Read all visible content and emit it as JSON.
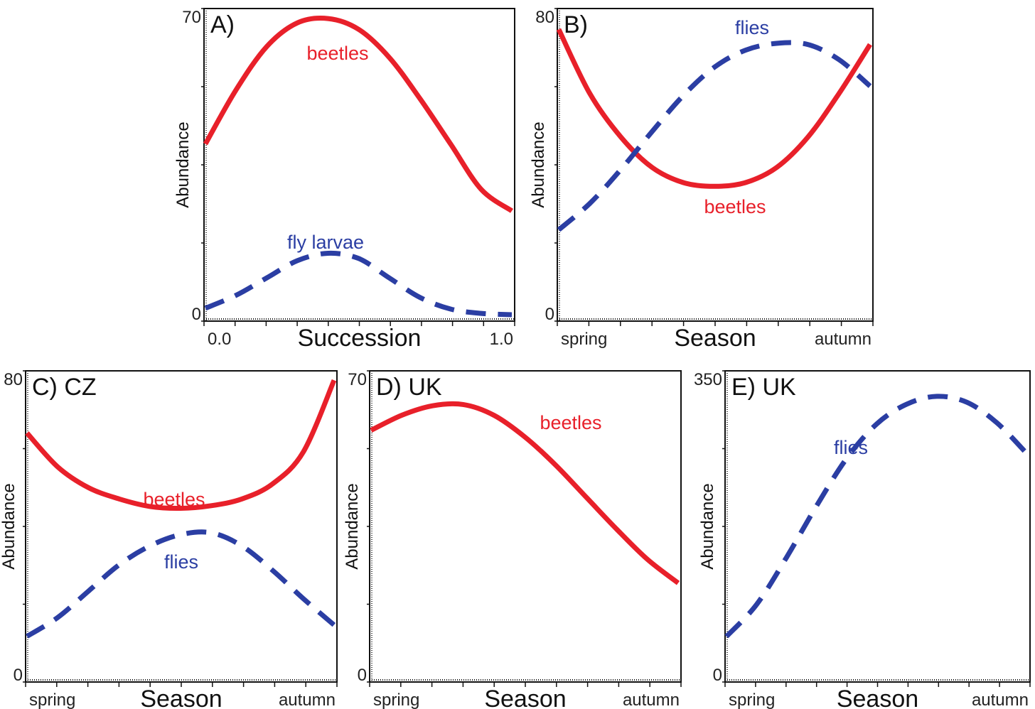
{
  "colors": {
    "beetles": "#e8202a",
    "flies": "#2b3ea3",
    "axis": "#111111"
  },
  "chart_data": [
    {
      "type": "line",
      "panel": "A)",
      "xlabel": "Succession",
      "ylabel": "Abundance",
      "x_ticks": [
        "0.0",
        "1.0"
      ],
      "y_ticks": [
        "0",
        "70"
      ],
      "xlim": [
        0,
        1
      ],
      "ylim": [
        0,
        70
      ],
      "grid": false,
      "series": [
        {
          "name": "beetles",
          "style": "solid",
          "color": "#e8202a",
          "x": [
            0,
            0.1,
            0.2,
            0.3,
            0.4,
            0.5,
            0.6,
            0.7,
            0.8,
            0.9,
            1.0
          ],
          "y": [
            40,
            52.5,
            62.5,
            68,
            69,
            66.5,
            60,
            50.5,
            40,
            29.5,
            24.5
          ]
        },
        {
          "name": "fly larvae",
          "style": "dashed",
          "color": "#2b3ea3",
          "x": [
            0,
            0.1,
            0.2,
            0.3,
            0.4,
            0.5,
            0.6,
            0.7,
            0.8,
            0.9,
            1.0
          ],
          "y": [
            2,
            5,
            9,
            13,
            14.7,
            13.5,
            9,
            4.5,
            1.8,
            0.8,
            0.5
          ]
        }
      ]
    },
    {
      "type": "line",
      "panel": "B)",
      "xlabel": "Season",
      "ylabel": "Abundance",
      "x_ticks": [
        "spring",
        "autumn"
      ],
      "y_ticks": [
        "0",
        "80"
      ],
      "xlim": [
        0,
        1
      ],
      "ylim": [
        0,
        80
      ],
      "grid": false,
      "series": [
        {
          "name": "beetles",
          "style": "solid",
          "color": "#e8202a",
          "x": [
            0,
            0.1,
            0.2,
            0.3,
            0.4,
            0.5,
            0.6,
            0.7,
            0.8,
            0.9,
            1.0
          ],
          "y": [
            76,
            59,
            47.5,
            39.5,
            35.5,
            34.5,
            35.5,
            39.5,
            47.5,
            59,
            72
          ]
        },
        {
          "name": "flies",
          "style": "dashed",
          "color": "#2b3ea3",
          "x": [
            0,
            0.1,
            0.2,
            0.3,
            0.4,
            0.5,
            0.6,
            0.7,
            0.8,
            0.9,
            1.0
          ],
          "y": [
            23,
            30,
            39,
            49,
            58.5,
            66,
            70.5,
            72.3,
            72,
            68,
            61
          ]
        }
      ]
    },
    {
      "type": "line",
      "panel": "C) CZ",
      "xlabel": "Season",
      "ylabel": "Abundance",
      "x_ticks": [
        "spring",
        "autumn"
      ],
      "y_ticks": [
        "0",
        "80"
      ],
      "xlim": [
        0,
        1
      ],
      "ylim": [
        0,
        80
      ],
      "grid": false,
      "series": [
        {
          "name": "beetles",
          "style": "solid",
          "color": "#e8202a",
          "x": [
            0,
            0.1,
            0.2,
            0.3,
            0.4,
            0.5,
            0.6,
            0.7,
            0.8,
            0.9,
            1.0
          ],
          "y": [
            65,
            56,
            50.5,
            47.5,
            45.5,
            45,
            45.7,
            47.5,
            51.5,
            60,
            79
          ]
        },
        {
          "name": "flies",
          "style": "dashed",
          "color": "#2b3ea3",
          "x": [
            0,
            0.1,
            0.2,
            0.3,
            0.4,
            0.5,
            0.6,
            0.7,
            0.8,
            0.9,
            1.0
          ],
          "y": [
            11,
            16,
            23,
            30,
            35,
            38,
            38.5,
            35,
            28.5,
            21,
            14
          ]
        }
      ]
    },
    {
      "type": "line",
      "panel": "D) UK",
      "xlabel": "Season",
      "ylabel": "Abundance",
      "x_ticks": [
        "spring",
        "autumn"
      ],
      "y_ticks": [
        "0",
        "70"
      ],
      "xlim": [
        0,
        1
      ],
      "ylim": [
        0,
        70
      ],
      "grid": false,
      "series": [
        {
          "name": "beetles",
          "style": "solid",
          "color": "#e8202a",
          "x": [
            0,
            0.1,
            0.2,
            0.3,
            0.4,
            0.5,
            0.6,
            0.7,
            0.8,
            0.9,
            1.0
          ],
          "y": [
            57.5,
            61,
            63.2,
            63.5,
            61,
            56,
            49.5,
            42,
            34.5,
            27.5,
            22
          ]
        }
      ]
    },
    {
      "type": "line",
      "panel": "E) UK",
      "xlabel": "Season",
      "ylabel": "Abundance",
      "x_ticks": [
        "spring",
        "autumn"
      ],
      "y_ticks": [
        "0",
        "350"
      ],
      "xlim": [
        0,
        1
      ],
      "ylim": [
        0,
        350
      ],
      "grid": false,
      "series": [
        {
          "name": "flies",
          "style": "dashed",
          "color": "#2b3ea3",
          "x": [
            0,
            0.1,
            0.2,
            0.3,
            0.4,
            0.5,
            0.6,
            0.7,
            0.8,
            0.9,
            1.0
          ],
          "y": [
            48,
            85,
            140,
            200,
            255,
            295,
            318,
            327,
            320,
            296,
            260
          ]
        }
      ]
    }
  ]
}
